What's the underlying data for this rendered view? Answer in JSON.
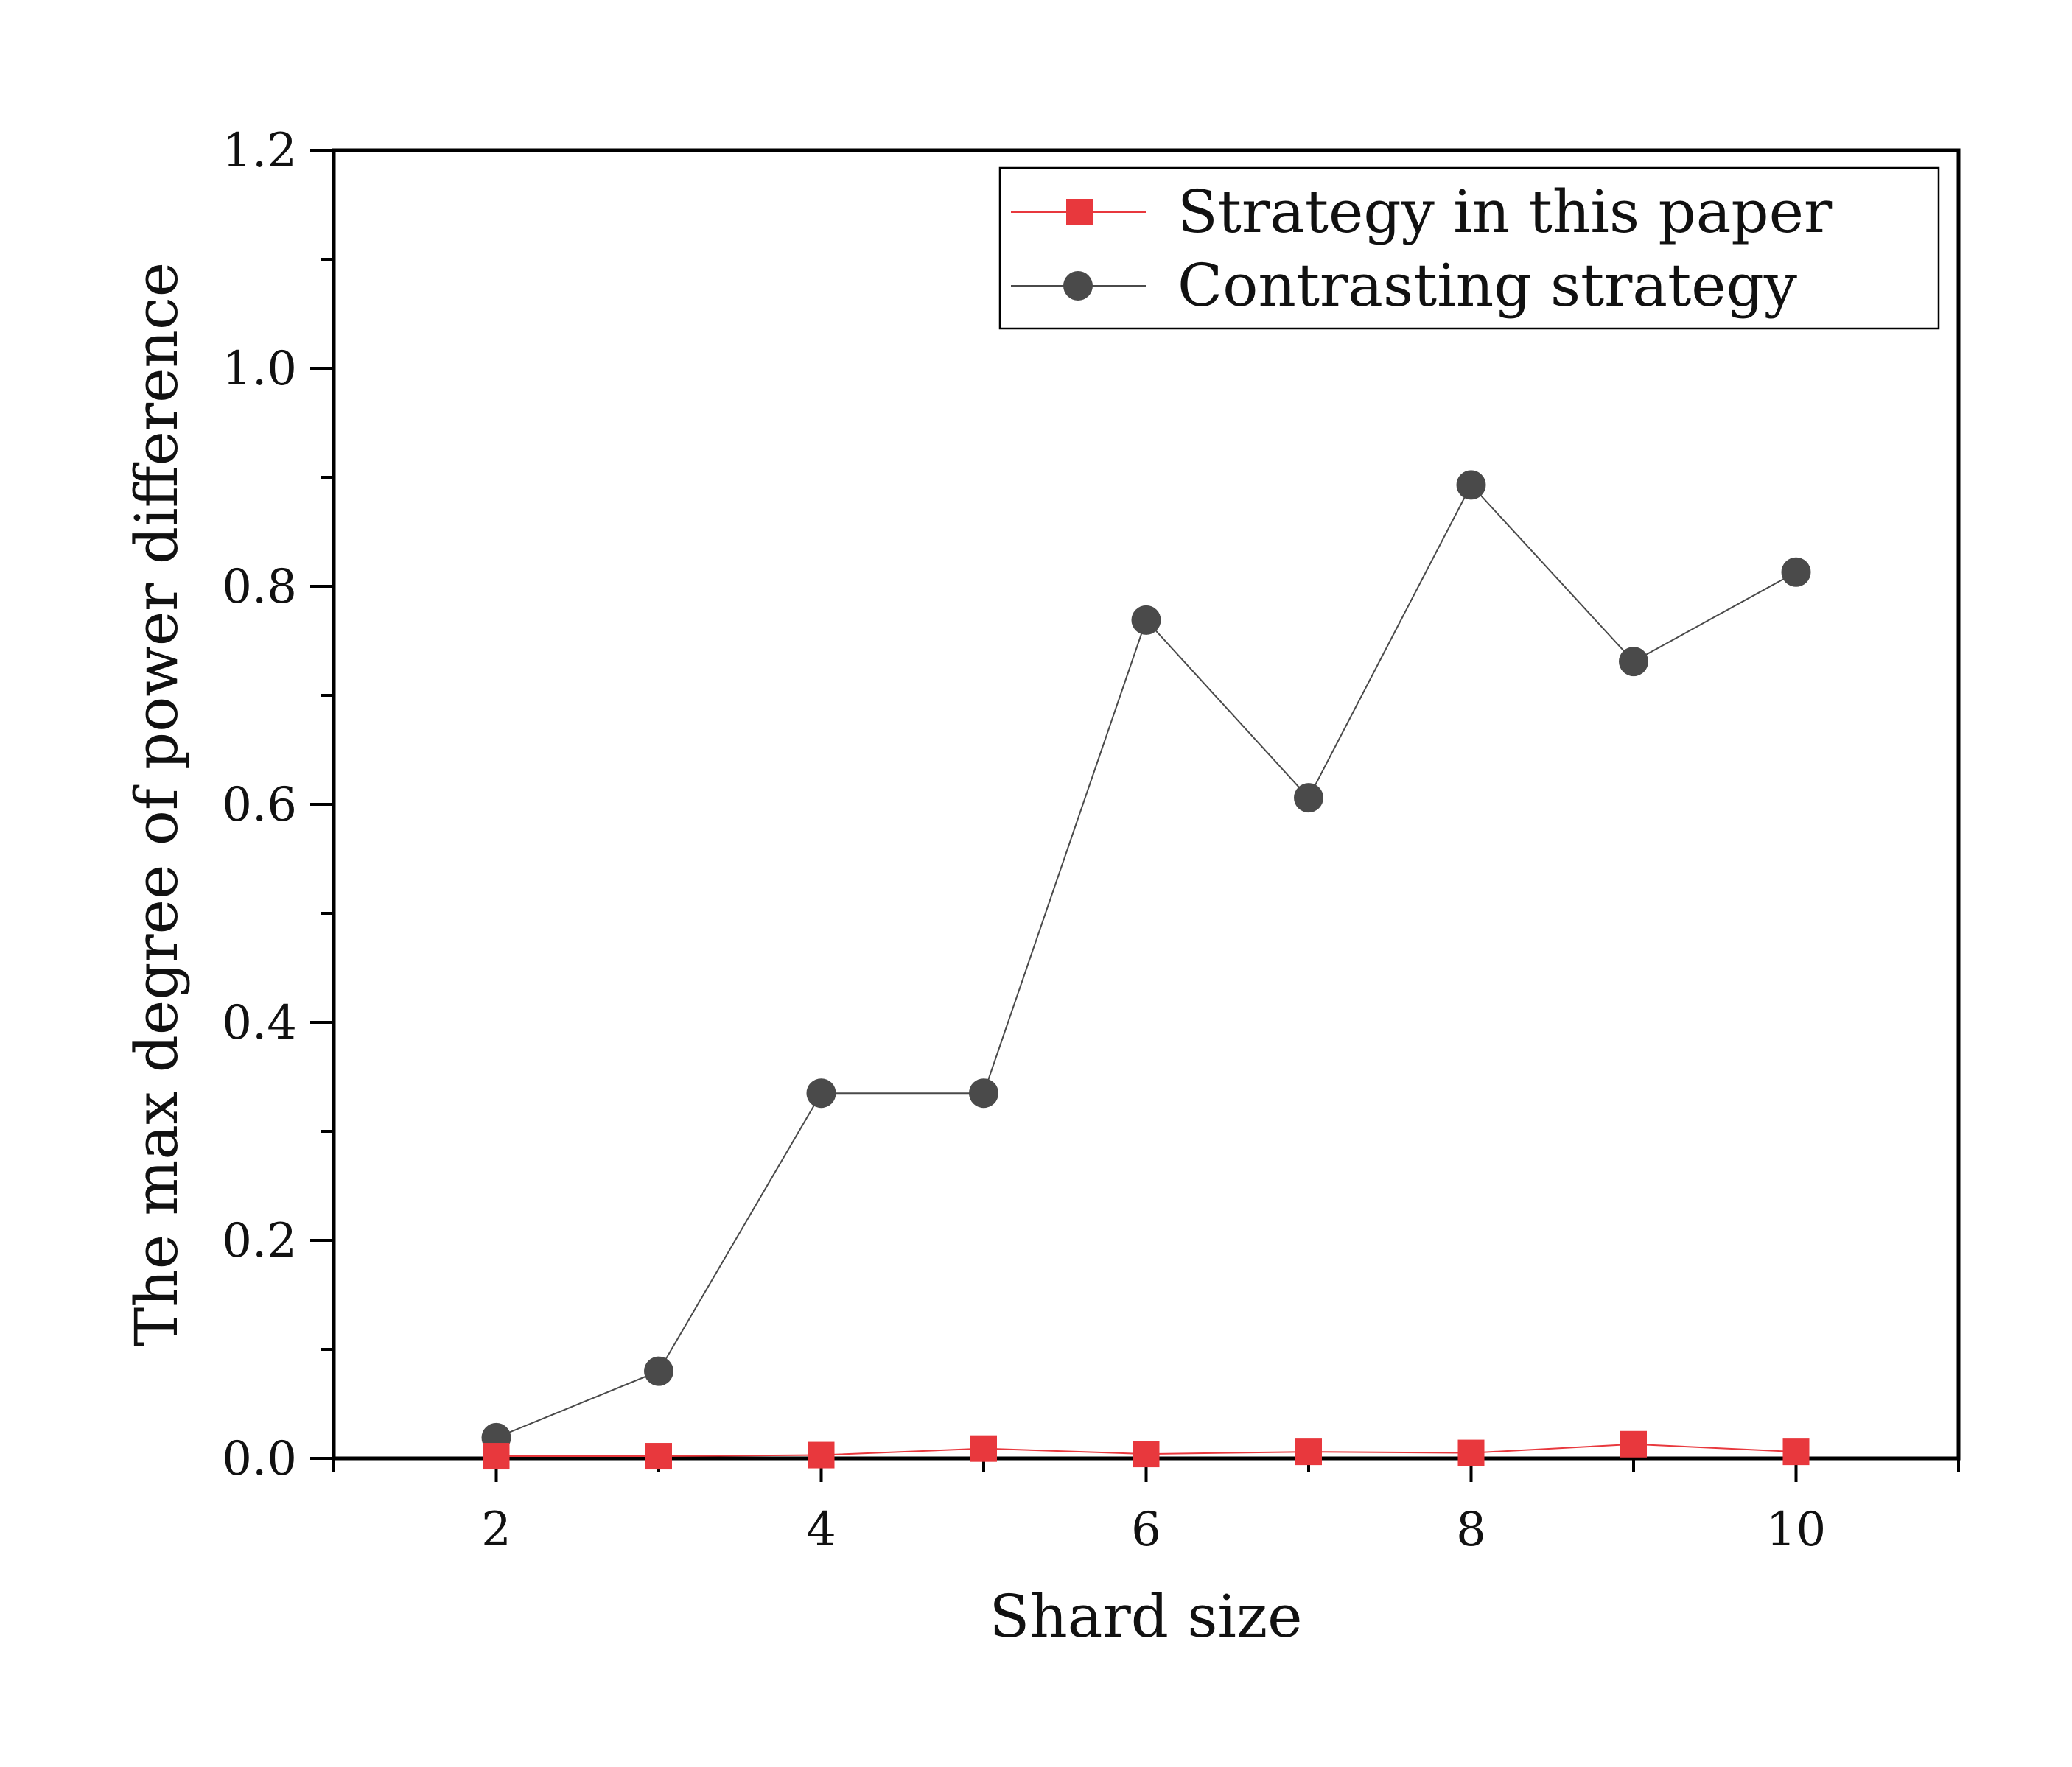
{
  "chart_data": {
    "type": "line",
    "xlabel": "Shard size",
    "ylabel": "The max degree of power difference",
    "xlim": [
      1,
      11
    ],
    "ylim": [
      0.0,
      1.2
    ],
    "x_ticks": [
      2,
      4,
      6,
      8,
      10
    ],
    "x_tick_labels": [
      "2",
      "4",
      "6",
      "8",
      "10"
    ],
    "y_ticks": [
      0.0,
      0.2,
      0.4,
      0.6,
      0.8,
      1.0,
      1.2
    ],
    "y_tick_labels": [
      "0.0",
      "0.2",
      "0.4",
      "0.6",
      "0.8",
      "1.0",
      "1.2"
    ],
    "grid": false,
    "legend_position": "top-right",
    "x": [
      2,
      3,
      4,
      5,
      6,
      7,
      8,
      9,
      10
    ],
    "series": [
      {
        "name": "Strategy in this paper",
        "marker": "square",
        "color": "#e8383d",
        "values": [
          0.002,
          0.002,
          0.003,
          0.009,
          0.004,
          0.006,
          0.005,
          0.013,
          0.006
        ]
      },
      {
        "name": "Contrasting strategy",
        "marker": "circle",
        "color": "#4a4a4a",
        "values": [
          0.019,
          0.08,
          0.335,
          0.335,
          0.769,
          0.606,
          0.893,
          0.731,
          0.813
        ]
      }
    ]
  }
}
